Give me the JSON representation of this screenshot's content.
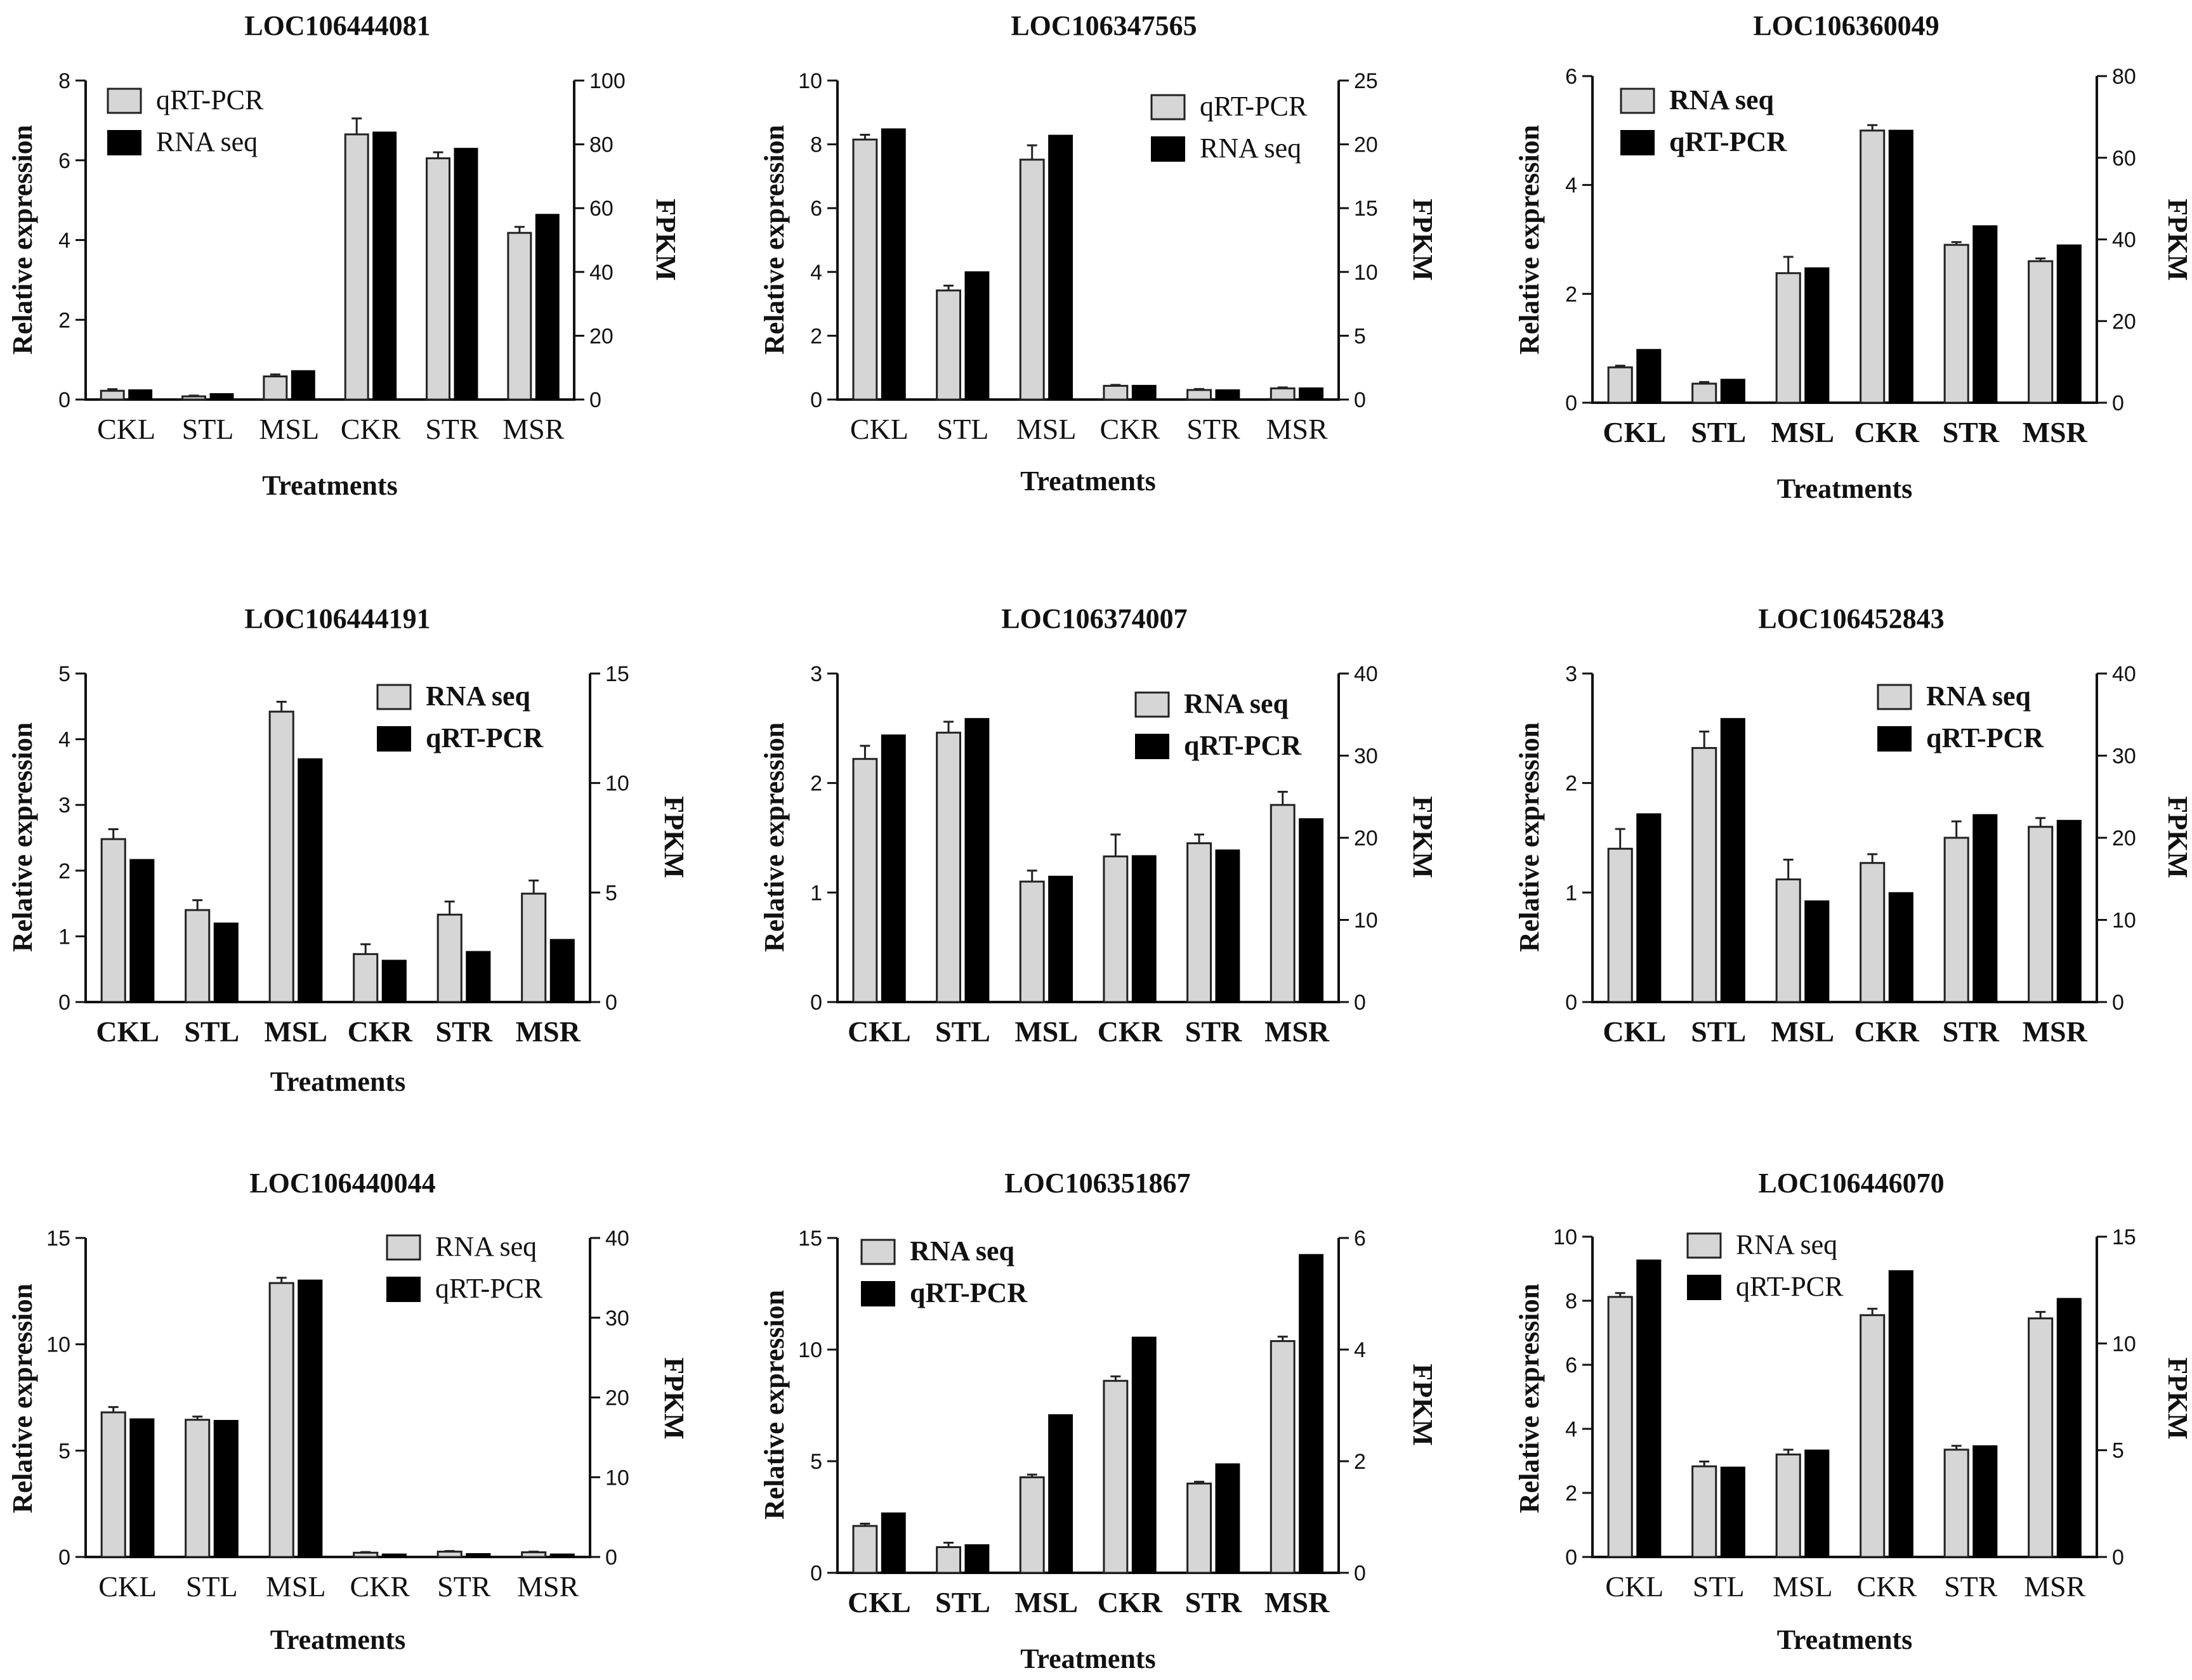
{
  "chart_data": [
    {
      "type": "bar",
      "title": "LOC106444081",
      "categories": [
        "CKL",
        "STL",
        "MSL",
        "CKR",
        "STR",
        "MSR"
      ],
      "xlabel": "Treatments",
      "ylabel": "Relative expression",
      "y2label": "FPKM",
      "ylim": [
        0,
        8
      ],
      "yticks": [
        0,
        2,
        4,
        6,
        8
      ],
      "y2lim": [
        0,
        100
      ],
      "y2ticks": [
        0,
        20,
        40,
        60,
        80,
        100
      ],
      "legend_position": "top-left",
      "series": [
        {
          "name": "qRT-PCR",
          "style": "grey",
          "axis": "left",
          "values": [
            0.22,
            0.08,
            0.58,
            6.65,
            6.05,
            4.18
          ],
          "errors": [
            0.04,
            0.02,
            0.05,
            0.4,
            0.15,
            0.15
          ]
        },
        {
          "name": "RNA seq",
          "style": "black",
          "axis": "right",
          "values": [
            3.0,
            1.8,
            9.0,
            83.8,
            78.7,
            58.0
          ]
        }
      ]
    },
    {
      "type": "bar",
      "title": "LOC106347565",
      "categories": [
        "CKL",
        "STL",
        "MSL",
        "CKR",
        "STR",
        "MSR"
      ],
      "xlabel": "Treatments",
      "ylabel": "Relative expression",
      "y2label": "FPKM",
      "ylim": [
        0,
        10
      ],
      "yticks": [
        0,
        2,
        4,
        6,
        8,
        10
      ],
      "y2lim": [
        0,
        25
      ],
      "y2ticks": [
        0,
        5,
        10,
        15,
        20,
        25
      ],
      "legend_position": "top-right",
      "series": [
        {
          "name": "qRT-PCR",
          "style": "grey",
          "axis": "left",
          "values": [
            8.15,
            3.42,
            7.52,
            0.43,
            0.3,
            0.35
          ],
          "errors": [
            0.15,
            0.15,
            0.45,
            0.03,
            0.03,
            0.03
          ]
        },
        {
          "name": "RNA seq",
          "style": "black",
          "axis": "right",
          "values": [
            21.2,
            10.0,
            20.7,
            1.1,
            0.75,
            0.9
          ]
        }
      ]
    },
    {
      "type": "bar",
      "title": "LOC106360049",
      "categories": [
        "CKL",
        "STL",
        "MSL",
        "CKR",
        "STR",
        "MSR"
      ],
      "xlabel": "Treatments",
      "ylabel": "Relative expression",
      "y2label": "FPKM",
      "ylim": [
        0,
        6
      ],
      "yticks": [
        0,
        2,
        4,
        6
      ],
      "y2lim": [
        0,
        80
      ],
      "y2ticks": [
        0,
        20,
        40,
        60,
        80
      ],
      "legend_position": "top-left",
      "series": [
        {
          "name": "RNA seq",
          "style": "grey",
          "axis": "left",
          "values": [
            0.65,
            0.35,
            2.38,
            5.0,
            2.9,
            2.6
          ],
          "errors": [
            0.03,
            0.03,
            0.3,
            0.1,
            0.05,
            0.05
          ]
        },
        {
          "name": "qRT-PCR",
          "style": "black",
          "axis": "right",
          "values": [
            13.0,
            5.7,
            33.0,
            66.7,
            43.3,
            38.6
          ]
        }
      ]
    },
    {
      "type": "bar",
      "title": "LOC106444191",
      "categories": [
        "CKL",
        "STL",
        "MSL",
        "CKR",
        "STR",
        "MSR"
      ],
      "xlabel": "Treatments",
      "ylabel": "Relative expression",
      "y2label": "FPKM",
      "ylim": [
        0,
        5
      ],
      "yticks": [
        0,
        1,
        2,
        3,
        4,
        5
      ],
      "y2lim": [
        0,
        15
      ],
      "y2ticks": [
        0,
        5,
        10,
        15
      ],
      "legend_position": "top-right",
      "series": [
        {
          "name": "RNA seq",
          "style": "grey",
          "axis": "left",
          "values": [
            2.48,
            1.4,
            4.42,
            0.73,
            1.33,
            1.65
          ],
          "errors": [
            0.15,
            0.15,
            0.15,
            0.15,
            0.2,
            0.2
          ]
        },
        {
          "name": "qRT-PCR",
          "style": "black",
          "axis": "right",
          "values": [
            6.5,
            3.6,
            11.1,
            1.9,
            2.3,
            2.85
          ]
        }
      ]
    },
    {
      "type": "bar",
      "title": "LOC106374007",
      "categories": [
        "CKL",
        "STL",
        "MSL",
        "CKR",
        "STR",
        "MSR"
      ],
      "xlabel": "",
      "ylabel": "Relative expression",
      "y2label": "FPKM",
      "ylim": [
        0,
        3
      ],
      "yticks": [
        0,
        1,
        2,
        3
      ],
      "y2lim": [
        0,
        40
      ],
      "y2ticks": [
        0,
        10,
        20,
        30,
        40
      ],
      "legend_position": "top-right",
      "series": [
        {
          "name": "RNA seq",
          "style": "grey",
          "axis": "left",
          "values": [
            2.22,
            2.46,
            1.1,
            1.33,
            1.45,
            1.8
          ],
          "errors": [
            0.12,
            0.1,
            0.1,
            0.2,
            0.08,
            0.12
          ]
        },
        {
          "name": "qRT-PCR",
          "style": "black",
          "axis": "right",
          "values": [
            32.5,
            34.5,
            15.3,
            17.8,
            18.5,
            22.3
          ]
        }
      ]
    },
    {
      "type": "bar",
      "title": "LOC106452843",
      "categories": [
        "CKL",
        "STL",
        "MSL",
        "CKR",
        "STR",
        "MSR"
      ],
      "xlabel": "",
      "ylabel": "Relative expression",
      "y2label": "FPKM",
      "ylim": [
        0,
        3
      ],
      "yticks": [
        0,
        1,
        2,
        3
      ],
      "y2lim": [
        0,
        40
      ],
      "y2ticks": [
        0,
        10,
        20,
        30,
        40
      ],
      "legend_position": "top-right",
      "series": [
        {
          "name": "RNA seq",
          "style": "grey",
          "axis": "left",
          "values": [
            1.4,
            2.32,
            1.12,
            1.27,
            1.5,
            1.6
          ],
          "errors": [
            0.18,
            0.15,
            0.18,
            0.08,
            0.15,
            0.08
          ]
        },
        {
          "name": "qRT-PCR",
          "style": "black",
          "axis": "right",
          "values": [
            22.9,
            34.5,
            12.3,
            13.3,
            22.8,
            22.1
          ]
        }
      ]
    },
    {
      "type": "bar",
      "title": "LOC106440044",
      "categories": [
        "CKL",
        "STL",
        "MSL",
        "CKR",
        "STR",
        "MSR"
      ],
      "xlabel": "Treatments",
      "ylabel": "Relative expression",
      "y2label": "FPKM",
      "ylim": [
        0,
        15
      ],
      "yticks": [
        0,
        5,
        10,
        15
      ],
      "y2lim": [
        0,
        40
      ],
      "y2ticks": [
        0,
        10,
        20,
        30,
        40
      ],
      "legend_position": "top-right",
      "series": [
        {
          "name": "RNA seq",
          "style": "grey",
          "axis": "left",
          "values": [
            6.8,
            6.45,
            12.88,
            0.2,
            0.25,
            0.22
          ],
          "errors": [
            0.25,
            0.15,
            0.25,
            0.03,
            0.03,
            0.03
          ]
        },
        {
          "name": "qRT-PCR",
          "style": "black",
          "axis": "right",
          "values": [
            17.3,
            17.1,
            34.7,
            0.35,
            0.4,
            0.35
          ]
        }
      ]
    },
    {
      "type": "bar",
      "title": "LOC106351867",
      "categories": [
        "CKL",
        "STL",
        "MSL",
        "CKR",
        "STR",
        "MSR"
      ],
      "xlabel": "Treatments",
      "ylabel": "Relative expression",
      "y2label": "FPKM",
      "ylim": [
        0,
        15
      ],
      "yticks": [
        0,
        5,
        10,
        15
      ],
      "y2lim": [
        0,
        6
      ],
      "y2ticks": [
        0,
        2,
        4,
        6
      ],
      "legend_position": "top-left",
      "series": [
        {
          "name": "RNA seq",
          "style": "grey",
          "axis": "left",
          "values": [
            2.1,
            1.15,
            4.28,
            8.6,
            4.0,
            10.38
          ],
          "errors": [
            0.1,
            0.2,
            0.12,
            0.2,
            0.08,
            0.2
          ]
        },
        {
          "name": "qRT-PCR",
          "style": "black",
          "axis": "right",
          "values": [
            1.07,
            0.5,
            2.83,
            4.22,
            1.95,
            5.7
          ]
        }
      ]
    },
    {
      "type": "bar",
      "title": "LOC106446070",
      "categories": [
        "CKL",
        "STL",
        "MSL",
        "CKR",
        "STR",
        "MSR"
      ],
      "xlabel": "Treatments",
      "ylabel": "Relative expression",
      "y2label": "FPKM",
      "ylim": [
        0,
        10
      ],
      "yticks": [
        0,
        2,
        4,
        6,
        8,
        10
      ],
      "y2lim": [
        0,
        15
      ],
      "y2ticks": [
        0,
        5,
        10,
        15
      ],
      "legend_position": "top-left",
      "series": [
        {
          "name": "RNA seq",
          "style": "grey",
          "axis": "left",
          "values": [
            8.12,
            2.83,
            3.2,
            7.55,
            3.35,
            7.45
          ],
          "errors": [
            0.12,
            0.15,
            0.15,
            0.2,
            0.12,
            0.2
          ]
        },
        {
          "name": "qRT-PCR",
          "style": "black",
          "axis": "right",
          "values": [
            13.9,
            4.2,
            5.0,
            13.4,
            5.2,
            12.1
          ]
        }
      ]
    }
  ]
}
